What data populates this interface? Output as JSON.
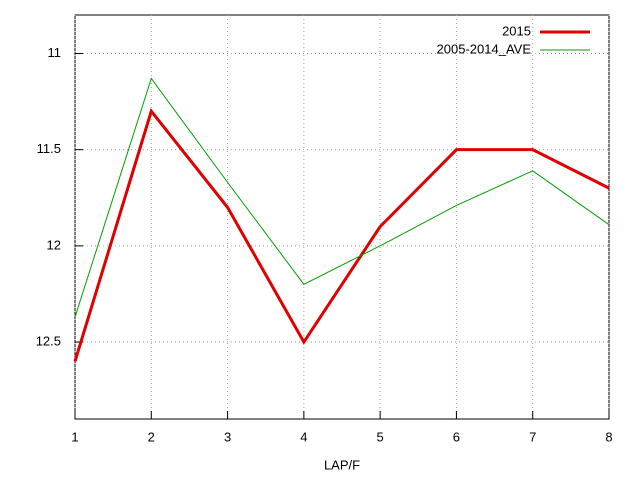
{
  "chart_data": {
    "type": "line",
    "x_label": "LAP/F",
    "x": [
      1,
      2,
      3,
      4,
      5,
      6,
      7,
      8
    ],
    "series": [
      {
        "name": "2015",
        "color": "#e00000",
        "width": 3,
        "values": [
          12.6,
          11.3,
          11.8,
          12.5,
          11.9,
          11.5,
          11.5,
          11.7
        ]
      },
      {
        "name": "2005-2014_AVE",
        "color": "#00a000",
        "width": 1,
        "values": [
          12.37,
          11.13,
          11.67,
          12.2,
          12.0,
          11.79,
          11.61,
          11.89
        ]
      }
    ],
    "xlim": [
      1,
      8
    ],
    "xticks": [
      1,
      2,
      3,
      4,
      5,
      6,
      7,
      8
    ],
    "ylim": [
      10.8,
      12.9
    ],
    "y_reversed": true,
    "yticks": [
      11,
      11.5,
      12,
      12.5
    ],
    "grid": true,
    "legend": "top-right"
  }
}
